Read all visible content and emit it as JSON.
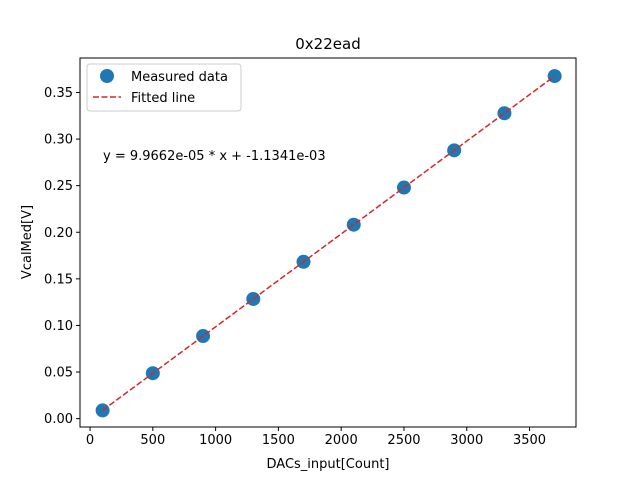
{
  "chart_data": {
    "type": "scatter",
    "title": "0x22ead",
    "xlabel": "DACs_input[Count]",
    "ylabel": "VcalMed[V]",
    "xlim": [
      -80,
      3870
    ],
    "ylim": [
      -0.009,
      0.387
    ],
    "xticks": [
      0,
      500,
      1000,
      1500,
      2000,
      2500,
      3000,
      3500
    ],
    "xtick_labels": [
      "0",
      "500",
      "1000",
      "1500",
      "2000",
      "2500",
      "3000",
      "3500"
    ],
    "yticks": [
      0.0,
      0.05,
      0.1,
      0.15,
      0.2,
      0.25,
      0.3,
      0.35
    ],
    "ytick_labels": [
      "0.00",
      "0.05",
      "0.10",
      "0.15",
      "0.20",
      "0.25",
      "0.30",
      "0.35"
    ],
    "grid": false,
    "legend_position": "top-left",
    "series": [
      {
        "name": "Measured data",
        "kind": "scatter",
        "color": "#1f77b4",
        "x": [
          100,
          500,
          900,
          1300,
          1700,
          2100,
          2500,
          2900,
          3300,
          3700
        ],
        "y": [
          0.0088,
          0.0487,
          0.0886,
          0.1284,
          0.1683,
          0.2081,
          0.248,
          0.2879,
          0.3277,
          0.3676
        ]
      },
      {
        "name": "Fitted line",
        "kind": "line",
        "style": "dashed",
        "color": "#d62728",
        "slope": 9.9662e-05,
        "intercept": -0.0011341,
        "x_range": [
          100,
          3700
        ]
      }
    ],
    "annotation": "y = 9.9662e-05 * x + -1.1341e-03"
  }
}
